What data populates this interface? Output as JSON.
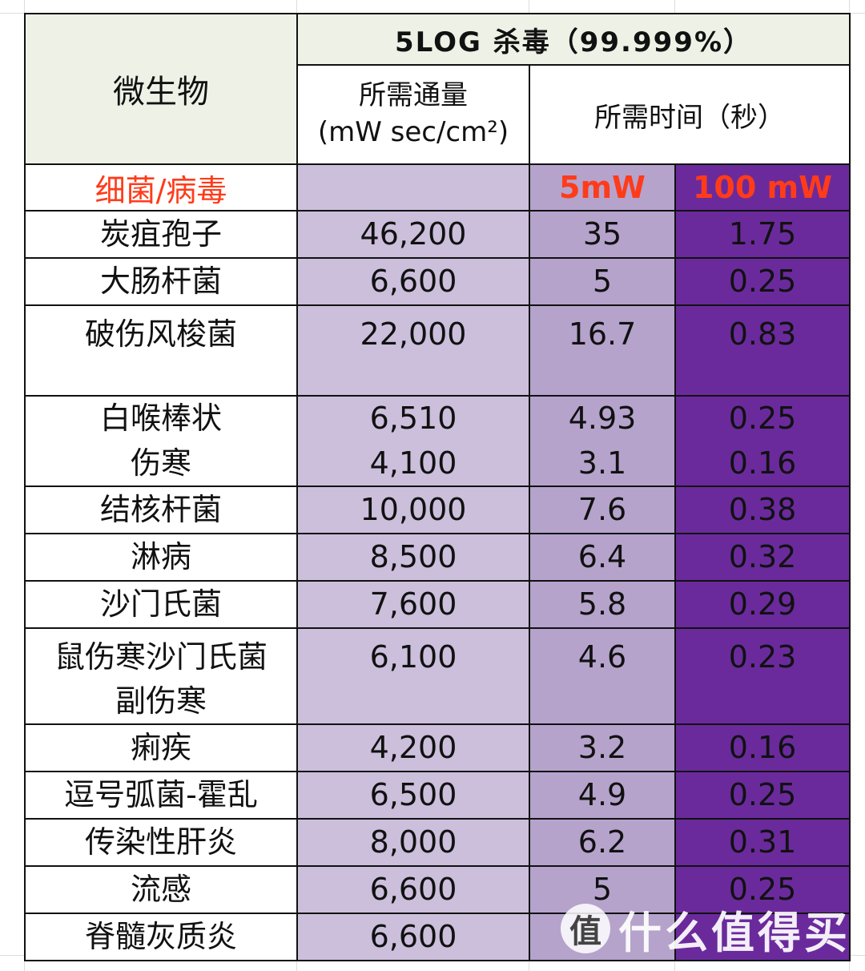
{
  "table": {
    "title": "5LOG 杀毒（99.999%）",
    "col_microbe": "微生物",
    "col_flux_line1": "所需通量",
    "col_flux_line2": "(mW sec/cm²)",
    "col_time": "所需时间（秒）",
    "category_label": "细菌/病毒",
    "power_5mw": "5mW",
    "power_100mw": "100 mW",
    "rows": [
      {
        "name": "炭疽孢子",
        "flux": "46,200",
        "t5": "35",
        "t100": "1.75"
      },
      {
        "name": "大肠杆菌",
        "flux": "6,600",
        "t5": "5",
        "t100": "0.25"
      },
      {
        "name": "破伤风梭菌",
        "flux": "22,000",
        "t5": "16.7",
        "t100": "0.83"
      },
      {
        "name": "白喉棒状",
        "flux": "6,510",
        "t5": "4.93",
        "t100": "0.25"
      },
      {
        "name": "伤寒",
        "flux": "4,100",
        "t5": "3.1",
        "t100": "0.16"
      },
      {
        "name": "结核杆菌",
        "flux": "10,000",
        "t5": "7.6",
        "t100": "0.38"
      },
      {
        "name": "淋病",
        "flux": "8,500",
        "t5": "6.4",
        "t100": "0.32"
      },
      {
        "name": "沙门氏菌",
        "flux": "7,600",
        "t5": "5.8",
        "t100": "0.29"
      },
      {
        "name": "鼠伤寒沙门氏菌",
        "flux": "6,100",
        "t5": "4.6",
        "t100": "0.23"
      },
      {
        "name": "副伤寒",
        "flux": "",
        "t5": "",
        "t100": ""
      },
      {
        "name": "痢疾",
        "flux": "4,200",
        "t5": "3.2",
        "t100": "0.16"
      },
      {
        "name": "逗号弧菌-霍乱",
        "flux": "6,500",
        "t5": "4.9",
        "t100": "0.25"
      },
      {
        "name": "传染性肝炎",
        "flux": "8,000",
        "t5": "6.2",
        "t100": "0.31"
      },
      {
        "name": "流感",
        "flux": "6,600",
        "t5": "5",
        "t100": "0.25"
      },
      {
        "name": "脊髓灰质炎",
        "flux": "6,600",
        "t5": "",
        "t100": ""
      }
    ]
  },
  "watermark": {
    "logo_glyph": "值",
    "text": "什么值得买"
  }
}
